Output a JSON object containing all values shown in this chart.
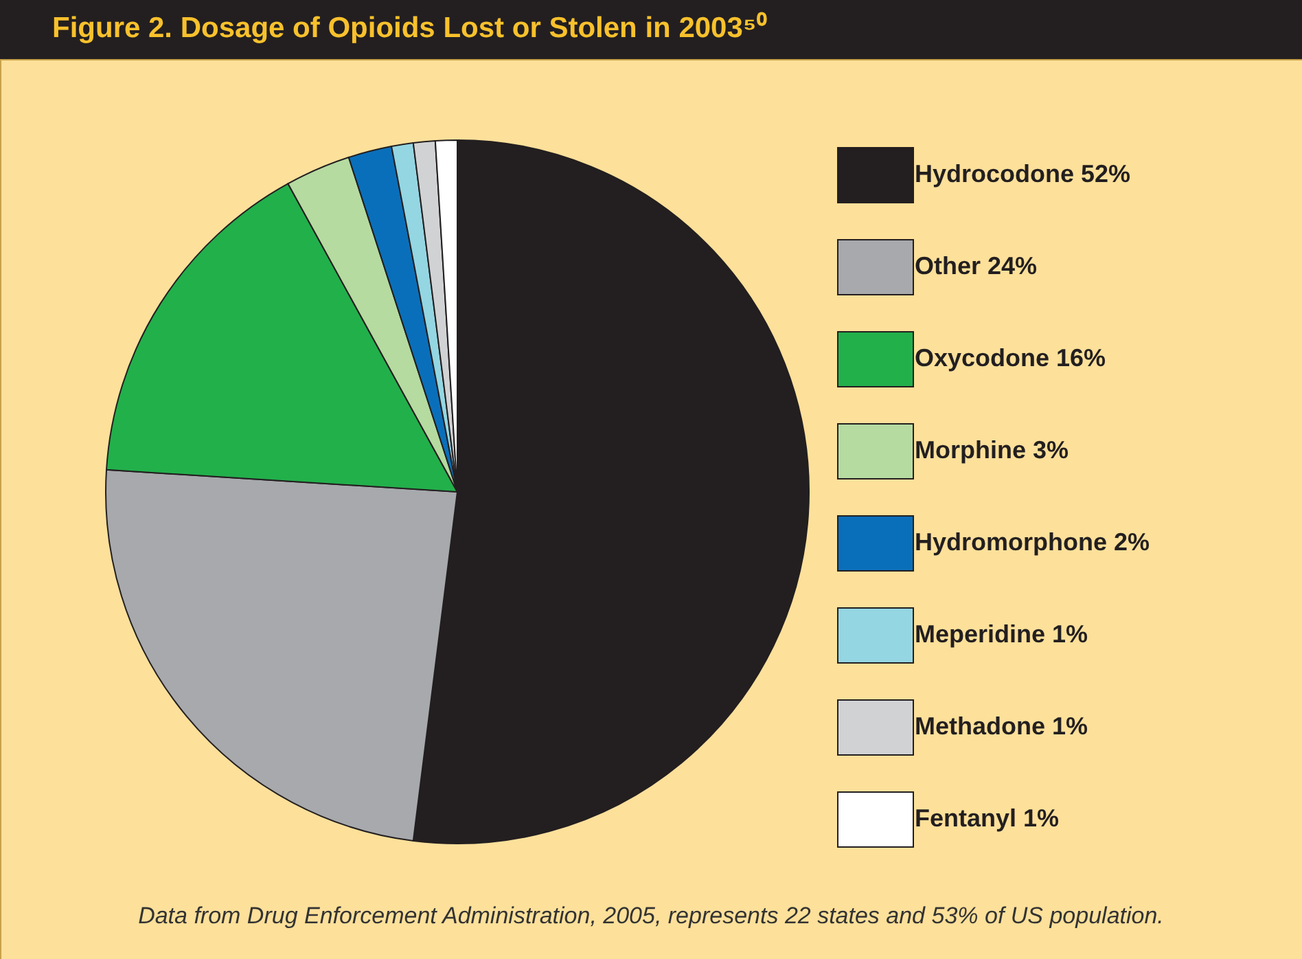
{
  "chart_data": {
    "type": "pie",
    "title": "Figure 2. Dosage of Opioids Lost or Stolen in 2003⁵⁰",
    "categories": [
      "Hydrocodone 52%",
      "Other 24%",
      "Oxycodone 16%",
      "Morphine 3%",
      "Hydromorphone 2%",
      "Meperidine 1%",
      "Methadone 1%",
      "Fentanyl 1%"
    ],
    "values": [
      52,
      24,
      16,
      3,
      2,
      1,
      1,
      1
    ],
    "colors": [
      "#231f20",
      "#a7a9ac",
      "#22b04b",
      "#b5dba0",
      "#0a6fba",
      "#94d6e2",
      "#d1d2d4",
      "#ffffff"
    ],
    "legend": "right",
    "annotations": [
      "Data from Drug Enforcement Administration, 2005, represents 22 states and 53% of US population."
    ]
  }
}
